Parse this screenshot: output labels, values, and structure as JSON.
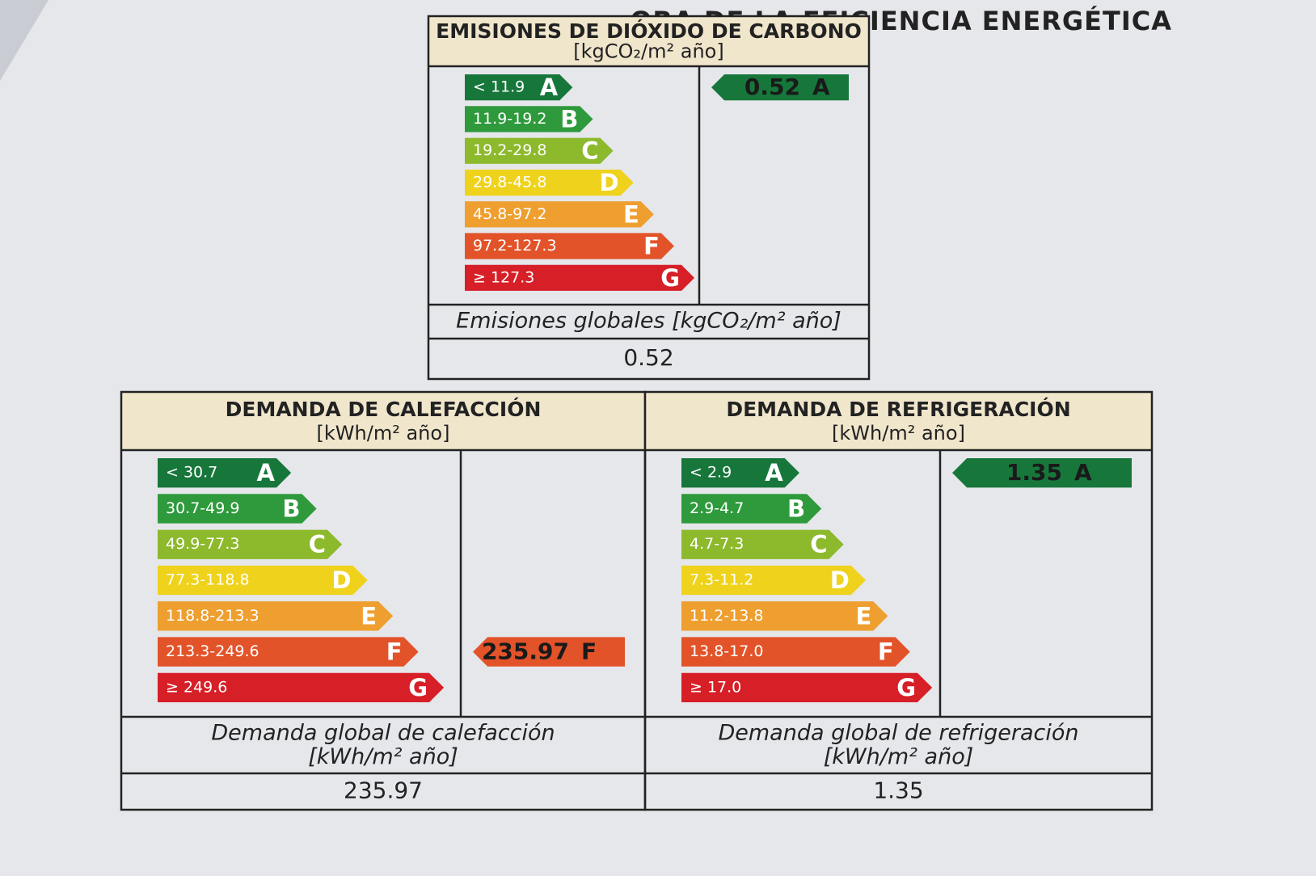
{
  "header": {
    "title": "ORA DE LA EFICIENCIA ENERGÉTICA"
  },
  "panels": [
    {
      "title": "EMISIONES DE DIÓXIDO DE CARBONO",
      "unit": "[kgCO₂/m² año]",
      "scale": [
        {
          "range": "< 11.9",
          "letter": "A"
        },
        {
          "range": "11.9-19.2",
          "letter": "B"
        },
        {
          "range": "19.2-29.8",
          "letter": "C"
        },
        {
          "range": "29.8-45.8",
          "letter": "D"
        },
        {
          "range": "45.8-97.2",
          "letter": "E"
        },
        {
          "range": "97.2-127.3",
          "letter": "F"
        },
        {
          "range": "≥ 127.3",
          "letter": "G"
        }
      ],
      "rating": {
        "value": "0.52",
        "letter": "A"
      },
      "footer": {
        "label": "Emisiones globales [kgCO₂/m² año]",
        "value": "0.52"
      }
    },
    {
      "title": "DEMANDA DE CALEFACCIÓN",
      "unit": "[kWh/m² año]",
      "scale": [
        {
          "range": "< 30.7",
          "letter": "A"
        },
        {
          "range": "30.7-49.9",
          "letter": "B"
        },
        {
          "range": "49.9-77.3",
          "letter": "C"
        },
        {
          "range": "77.3-118.8",
          "letter": "D"
        },
        {
          "range": "118.8-213.3",
          "letter": "E"
        },
        {
          "range": "213.3-249.6",
          "letter": "F"
        },
        {
          "range": "≥ 249.6",
          "letter": "G"
        }
      ],
      "rating": {
        "value": "235.97",
        "letter": "F"
      },
      "footer": {
        "label": "Demanda global de calefacción",
        "unit": "[kWh/m² año]",
        "value": "235.97"
      }
    },
    {
      "title": "DEMANDA DE REFRIGERACIÓN",
      "unit": "[kWh/m² año]",
      "scale": [
        {
          "range": "< 2.9",
          "letter": "A"
        },
        {
          "range": "2.9-4.7",
          "letter": "B"
        },
        {
          "range": "4.7-7.3",
          "letter": "C"
        },
        {
          "range": "7.3-11.2",
          "letter": "D"
        },
        {
          "range": "11.2-13.8",
          "letter": "E"
        },
        {
          "range": "13.8-17.0",
          "letter": "F"
        },
        {
          "range": "≥ 17.0",
          "letter": "G"
        }
      ],
      "rating": {
        "value": "1.35",
        "letter": "A"
      },
      "footer": {
        "label": "Demanda global de refrigeración",
        "unit": "[kWh/m² año]",
        "value": "1.35"
      }
    }
  ]
}
